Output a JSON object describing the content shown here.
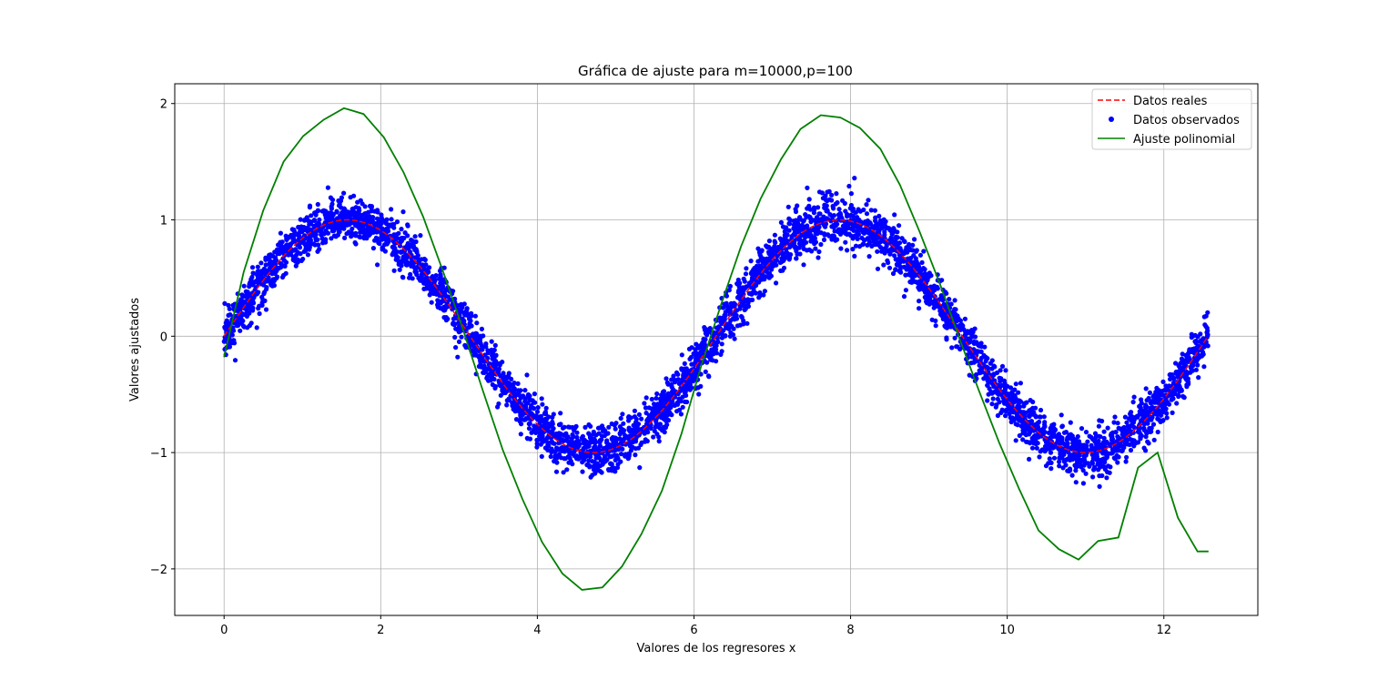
{
  "chart_data": {
    "type": "line",
    "title": "Gráfica de ajuste para m=10000,p=100",
    "xlabel": "Valores de los regresores x",
    "ylabel": "Valores ajustados",
    "xlim": [
      -0.63,
      13.2
    ],
    "ylim": [
      -2.4,
      2.17
    ],
    "xticks": [
      0,
      2,
      4,
      6,
      8,
      10,
      12
    ],
    "yticks": [
      -2,
      -1,
      0,
      1,
      2
    ],
    "xtick_labels": [
      "0",
      "2",
      "4",
      "6",
      "8",
      "10",
      "12"
    ],
    "ytick_labels": [
      "−2",
      "−1",
      "0",
      "1",
      "2"
    ],
    "grid": true,
    "legend_position": "top-right",
    "series": [
      {
        "name": "Datos reales",
        "kind": "dashed-line",
        "color": "#ff0000",
        "function": "sin(x)",
        "x_range": [
          0,
          12.566
        ]
      },
      {
        "name": "Datos observados",
        "kind": "scatter",
        "color": "#0000ff",
        "function": "sin(x) + noise",
        "noise_sd": 0.1,
        "n_points": 10000,
        "x_range": [
          0,
          12.566
        ]
      },
      {
        "name": "Ajuste polinomial",
        "kind": "line",
        "color": "#008000",
        "x": [
          0,
          0.25,
          0.5,
          0.76,
          1.01,
          1.27,
          1.53,
          1.78,
          2.04,
          2.29,
          2.54,
          2.8,
          3.05,
          3.3,
          3.56,
          3.81,
          4.06,
          4.32,
          4.57,
          4.83,
          5.08,
          5.33,
          5.59,
          5.84,
          6.09,
          6.35,
          6.6,
          6.85,
          7.11,
          7.36,
          7.62,
          7.87,
          8.12,
          8.38,
          8.63,
          8.88,
          9.14,
          9.39,
          9.64,
          9.9,
          10.15,
          10.4,
          10.66,
          10.91,
          11.16,
          11.42,
          11.67,
          11.92,
          12.18,
          12.43,
          12.57
        ],
        "y": [
          -0.18,
          0.55,
          1.08,
          1.5,
          1.72,
          1.86,
          1.96,
          1.91,
          1.71,
          1.41,
          1.03,
          0.55,
          0.06,
          -0.46,
          -0.98,
          -1.4,
          -1.77,
          -2.04,
          -2.18,
          -2.16,
          -1.98,
          -1.7,
          -1.33,
          -0.84,
          -0.26,
          0.28,
          0.77,
          1.18,
          1.52,
          1.78,
          1.9,
          1.88,
          1.79,
          1.61,
          1.3,
          0.9,
          0.45,
          -0.02,
          -0.47,
          -0.92,
          -1.31,
          -1.67,
          -1.83,
          -1.92,
          -1.76,
          -1.73,
          -1.13,
          -1.0,
          -1.56,
          -1.85,
          -1.85
        ]
      }
    ]
  }
}
